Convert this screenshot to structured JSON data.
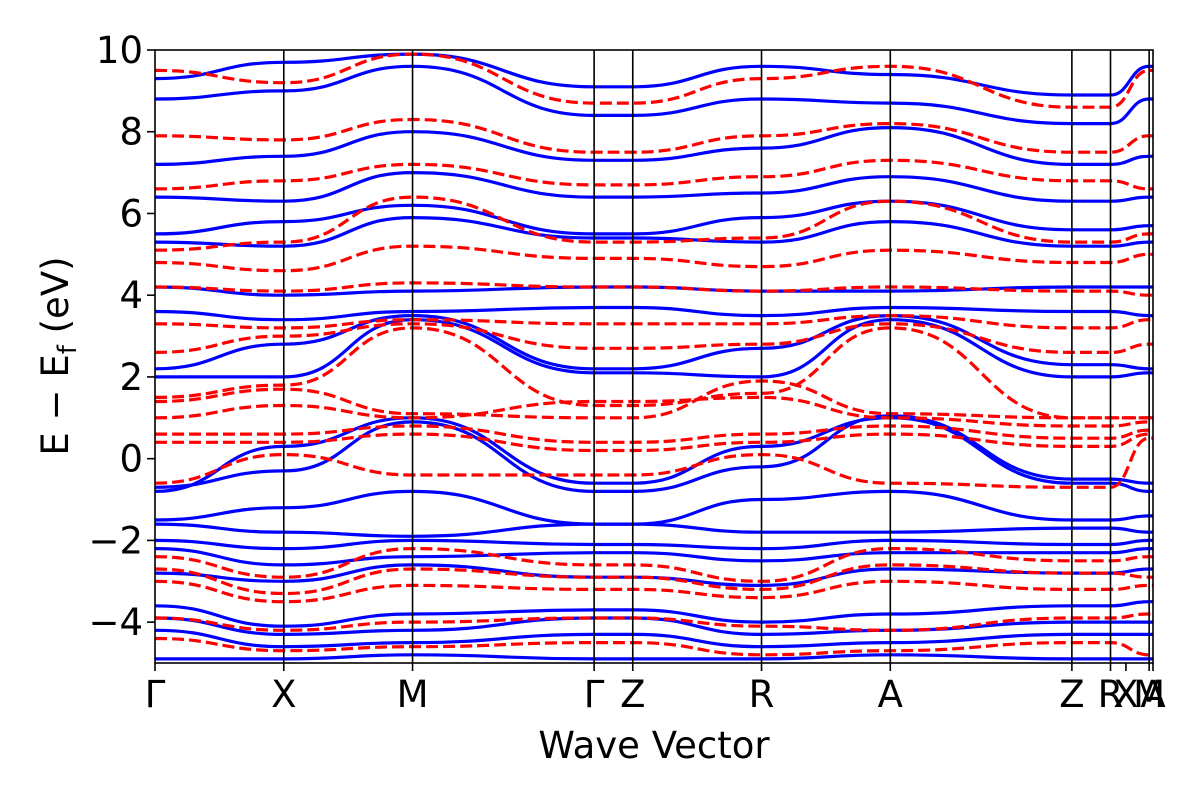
{
  "chart_data": {
    "type": "line",
    "title": "",
    "xlabel": "Wave Vector",
    "ylabel": "E − E",
    "ylabel_sub": "f",
    "ylabel_unit": " (eV)",
    "ylim": [
      -5,
      10
    ],
    "yticks": [
      -4,
      -2,
      0,
      2,
      4,
      6,
      8,
      10
    ],
    "ytick_labels": [
      "−4",
      "−2",
      "0",
      "2",
      "4",
      "6",
      "8",
      "10"
    ],
    "xlim": [
      0,
      7.75
    ],
    "kpoints": [
      {
        "label": "Γ",
        "x": 0.0
      },
      {
        "label": "X",
        "x": 1.0
      },
      {
        "label": "M",
        "x": 2.0
      },
      {
        "label": "Γ",
        "x": 3.41
      },
      {
        "label": "Z",
        "x": 3.71
      },
      {
        "label": "R",
        "x": 4.71
      },
      {
        "label": "A",
        "x": 5.71
      },
      {
        "label": "Z",
        "x": 7.12
      },
      {
        "label": "R",
        "x": 7.42
      },
      {
        "label": "X",
        "x": 7.54
      },
      {
        "label": "M",
        "x": 7.72
      },
      {
        "label": "A",
        "x": 7.75
      }
    ],
    "vlines": [
      1.0,
      2.0,
      3.41,
      3.71,
      4.71,
      5.71,
      7.12,
      7.42,
      7.72
    ],
    "grid": false,
    "legend": "none",
    "series_styles": [
      {
        "color": "#0000ff",
        "style": "solid"
      },
      {
        "color": "#ff0000",
        "style": "dashed"
      }
    ],
    "series": [
      {
        "style": 0,
        "x": [
          0,
          1,
          2,
          3.41,
          3.71,
          4.71,
          5.71,
          7.12,
          7.42,
          7.72,
          7.75
        ],
        "y": [
          -0.8,
          0.3,
          1.0,
          -0.6,
          -0.6,
          0.3,
          1.0,
          -0.6,
          -0.6,
          -0.8,
          -0.8
        ]
      },
      {
        "style": 0,
        "x": [
          0,
          1,
          2,
          3.41,
          3.71,
          4.71,
          5.71,
          7.12,
          7.42,
          7.72,
          7.75
        ],
        "y": [
          -0.7,
          -0.3,
          0.9,
          -0.8,
          -0.8,
          -0.2,
          1.05,
          -0.5,
          -0.5,
          -0.6,
          -0.6
        ]
      },
      {
        "style": 0,
        "x": [
          0,
          1,
          2,
          3.41,
          3.71,
          4.71,
          5.71,
          7.12,
          7.42,
          7.72,
          7.75
        ],
        "y": [
          -1.5,
          -1.2,
          -0.8,
          -1.6,
          -1.6,
          -1.0,
          -0.8,
          -1.5,
          -1.5,
          -1.4,
          -1.4
        ]
      },
      {
        "style": 0,
        "x": [
          0,
          1,
          2,
          3.41,
          3.71,
          4.71,
          5.71,
          7.12,
          7.42,
          7.72,
          7.75
        ],
        "y": [
          -1.6,
          -1.8,
          -1.9,
          -1.6,
          -1.6,
          -1.8,
          -1.8,
          -1.7,
          -1.7,
          -1.8,
          -1.8
        ]
      },
      {
        "style": 0,
        "x": [
          0,
          1,
          2,
          3.41,
          3.71,
          4.71,
          5.71,
          7.12,
          7.42,
          7.72,
          7.75
        ],
        "y": [
          -2.0,
          -2.2,
          -2.0,
          -2.1,
          -2.1,
          -2.2,
          -2.0,
          -2.1,
          -2.1,
          -2.0,
          -2.0
        ]
      },
      {
        "style": 0,
        "x": [
          0,
          1,
          2,
          3.41,
          3.71,
          4.71,
          5.71,
          7.12,
          7.42,
          7.72,
          7.75
        ],
        "y": [
          -2.2,
          -2.6,
          -2.4,
          -2.3,
          -2.3,
          -2.5,
          -2.3,
          -2.3,
          -2.3,
          -2.2,
          -2.2
        ]
      },
      {
        "style": 0,
        "x": [
          0,
          1,
          2,
          3.41,
          3.71,
          4.71,
          5.71,
          7.12,
          7.42,
          7.72,
          7.75
        ],
        "y": [
          -2.8,
          -3.0,
          -2.6,
          -2.9,
          -2.9,
          -3.1,
          -2.7,
          -2.8,
          -2.8,
          -2.7,
          -2.7
        ]
      },
      {
        "style": 0,
        "x": [
          0,
          1,
          2,
          3.41,
          3.71,
          4.71,
          5.71,
          7.12,
          7.42,
          7.72,
          7.75
        ],
        "y": [
          -3.6,
          -4.1,
          -3.8,
          -3.7,
          -3.7,
          -4.0,
          -3.8,
          -3.6,
          -3.6,
          -3.5,
          -3.5
        ]
      },
      {
        "style": 0,
        "x": [
          0,
          1,
          2,
          3.41,
          3.71,
          4.71,
          5.71,
          7.12,
          7.42,
          7.72,
          7.75
        ],
        "y": [
          -3.9,
          -4.3,
          -4.2,
          -3.9,
          -3.9,
          -4.3,
          -4.2,
          -4.0,
          -4.0,
          -4.0,
          -4.0
        ]
      },
      {
        "style": 0,
        "x": [
          0,
          1,
          2,
          3.41,
          3.71,
          4.71,
          5.71,
          7.12,
          7.42,
          7.72,
          7.75
        ],
        "y": [
          -4.2,
          -4.6,
          -4.5,
          -4.3,
          -4.3,
          -4.6,
          -4.5,
          -4.3,
          -4.3,
          -4.3,
          -4.3
        ]
      },
      {
        "style": 0,
        "x": [
          0,
          1,
          2,
          3.41,
          3.71,
          4.71,
          5.71,
          7.12,
          7.42,
          7.72,
          7.75
        ],
        "y": [
          -4.9,
          -4.9,
          -4.8,
          -4.9,
          -4.9,
          -4.9,
          -4.8,
          -4.9,
          -4.9,
          -4.9,
          -4.9
        ]
      },
      {
        "style": 0,
        "x": [
          0,
          1,
          2,
          3.41,
          3.71,
          4.71,
          5.71,
          7.12,
          7.42,
          7.72,
          7.75
        ],
        "y": [
          2.0,
          2.0,
          3.4,
          2.1,
          2.1,
          2.0,
          3.4,
          2.0,
          2.0,
          2.1,
          2.1
        ]
      },
      {
        "style": 0,
        "x": [
          0,
          1,
          2,
          3.41,
          3.71,
          4.71,
          5.71,
          7.12,
          7.42,
          7.72,
          7.75
        ],
        "y": [
          2.2,
          2.8,
          3.5,
          2.2,
          2.2,
          2.7,
          3.5,
          2.3,
          2.3,
          2.2,
          2.2
        ]
      },
      {
        "style": 0,
        "x": [
          0,
          1,
          2,
          3.41,
          3.71,
          4.71,
          5.71,
          7.12,
          7.42,
          7.72,
          7.75
        ],
        "y": [
          3.6,
          3.4,
          3.6,
          3.7,
          3.7,
          3.5,
          3.7,
          3.6,
          3.6,
          3.5,
          3.5
        ]
      },
      {
        "style": 0,
        "x": [
          0,
          1,
          2,
          3.41,
          3.71,
          4.71,
          5.71,
          7.12,
          7.42,
          7.72,
          7.75
        ],
        "y": [
          4.2,
          4.0,
          4.1,
          4.2,
          4.2,
          4.1,
          4.1,
          4.2,
          4.2,
          4.2,
          4.2
        ]
      },
      {
        "style": 0,
        "x": [
          0,
          1,
          2,
          3.41,
          3.71,
          4.71,
          5.71,
          7.12,
          7.42,
          7.72,
          7.75
        ],
        "y": [
          5.3,
          5.2,
          5.9,
          5.4,
          5.4,
          5.3,
          5.8,
          5.2,
          5.2,
          5.3,
          5.3
        ]
      },
      {
        "style": 0,
        "x": [
          0,
          1,
          2,
          3.41,
          3.71,
          4.71,
          5.71,
          7.12,
          7.42,
          7.72,
          7.75
        ],
        "y": [
          5.5,
          5.8,
          6.2,
          5.5,
          5.5,
          5.9,
          6.3,
          5.6,
          5.6,
          5.7,
          5.7
        ]
      },
      {
        "style": 0,
        "x": [
          0,
          1,
          2,
          3.41,
          3.71,
          4.71,
          5.71,
          7.12,
          7.42,
          7.72,
          7.75
        ],
        "y": [
          6.4,
          6.3,
          7.0,
          6.4,
          6.4,
          6.5,
          6.9,
          6.3,
          6.3,
          6.4,
          6.4
        ]
      },
      {
        "style": 0,
        "x": [
          0,
          1,
          2,
          3.41,
          3.71,
          4.71,
          5.71,
          7.12,
          7.42,
          7.72,
          7.75
        ],
        "y": [
          7.2,
          7.4,
          8.0,
          7.3,
          7.3,
          7.6,
          8.1,
          7.2,
          7.2,
          7.4,
          7.4
        ]
      },
      {
        "style": 0,
        "x": [
          0,
          1,
          2,
          3.41,
          3.71,
          4.71,
          5.71,
          7.12,
          7.42,
          7.72,
          7.75
        ],
        "y": [
          8.8,
          9.0,
          9.6,
          8.4,
          8.4,
          8.8,
          8.7,
          8.2,
          8.2,
          8.8,
          8.8
        ]
      },
      {
        "style": 0,
        "x": [
          0,
          1,
          2,
          3.41,
          3.71,
          4.71,
          5.71,
          7.12,
          7.42,
          7.72,
          7.75
        ],
        "y": [
          9.3,
          9.7,
          9.9,
          9.1,
          9.1,
          9.6,
          9.4,
          8.9,
          8.9,
          9.6,
          9.6
        ]
      },
      {
        "style": 1,
        "x": [
          0,
          1,
          2,
          3.41,
          3.71,
          4.71,
          5.71,
          7.12,
          7.42,
          7.72,
          7.75
        ],
        "y": [
          1.4,
          1.7,
          1.1,
          1.0,
          1.0,
          1.9,
          1.1,
          1.0,
          1.0,
          1.0,
          1.0
        ]
      },
      {
        "style": 1,
        "x": [
          0,
          1,
          2,
          3.41,
          3.71,
          4.71,
          5.71,
          7.12,
          7.42,
          7.72,
          7.75
        ],
        "y": [
          1.0,
          1.3,
          1.0,
          1.4,
          1.4,
          1.5,
          1.0,
          0.8,
          0.8,
          0.9,
          0.9
        ]
      },
      {
        "style": 1,
        "x": [
          0,
          1,
          2,
          3.41,
          3.71,
          4.71,
          5.71,
          7.12,
          7.42,
          7.72,
          7.75
        ],
        "y": [
          0.6,
          0.6,
          0.8,
          0.4,
          0.4,
          0.6,
          0.8,
          0.5,
          0.5,
          0.7,
          0.7
        ]
      },
      {
        "style": 1,
        "x": [
          0,
          1,
          2,
          3.41,
          3.71,
          4.71,
          5.71,
          7.12,
          7.42,
          7.72,
          7.75
        ],
        "y": [
          0.4,
          0.4,
          0.6,
          0.2,
          0.2,
          0.4,
          0.6,
          0.3,
          0.3,
          0.6,
          0.6
        ]
      },
      {
        "style": 1,
        "x": [
          0,
          1,
          2,
          3.41,
          3.71,
          4.71,
          5.71,
          7.12,
          7.42,
          7.72,
          7.75
        ],
        "y": [
          -0.6,
          0.1,
          -0.4,
          -0.4,
          -0.4,
          0.1,
          -0.6,
          -0.7,
          -0.7,
          0.5,
          0.5
        ]
      },
      {
        "style": 1,
        "x": [
          0,
          1,
          2,
          3.41,
          3.71,
          4.71,
          5.71,
          7.12,
          7.42,
          7.72,
          7.75
        ],
        "y": [
          1.5,
          1.8,
          3.2,
          1.3,
          1.3,
          1.6,
          3.2,
          1.0,
          1.0,
          1.0,
          1.0
        ]
      },
      {
        "style": 1,
        "x": [
          0,
          1,
          2,
          3.41,
          3.71,
          4.71,
          5.71,
          7.12,
          7.42,
          7.72,
          7.75
        ],
        "y": [
          2.6,
          3.0,
          3.3,
          2.7,
          2.7,
          2.8,
          3.3,
          2.6,
          2.6,
          2.8,
          2.8
        ]
      },
      {
        "style": 1,
        "x": [
          0,
          1,
          2,
          3.41,
          3.71,
          4.71,
          5.71,
          7.12,
          7.42,
          7.72,
          7.75
        ],
        "y": [
          3.3,
          3.2,
          3.4,
          3.3,
          3.3,
          3.3,
          3.5,
          3.2,
          3.2,
          3.4,
          3.4
        ]
      },
      {
        "style": 1,
        "x": [
          0,
          1,
          2,
          3.41,
          3.71,
          4.71,
          5.71,
          7.12,
          7.42,
          7.72,
          7.75
        ],
        "y": [
          4.2,
          4.1,
          4.3,
          4.2,
          4.2,
          4.1,
          4.2,
          4.1,
          4.1,
          4.0,
          4.0
        ]
      },
      {
        "style": 1,
        "x": [
          0,
          1,
          2,
          3.41,
          3.71,
          4.71,
          5.71,
          7.12,
          7.42,
          7.72,
          7.75
        ],
        "y": [
          4.8,
          4.6,
          5.2,
          4.9,
          4.9,
          4.7,
          5.1,
          4.8,
          4.8,
          5.0,
          5.0
        ]
      },
      {
        "style": 1,
        "x": [
          0,
          1,
          2,
          3.41,
          3.71,
          4.71,
          5.71,
          7.12,
          7.42,
          7.72,
          7.75
        ],
        "y": [
          5.1,
          5.3,
          6.4,
          5.3,
          5.3,
          5.4,
          6.3,
          5.3,
          5.3,
          5.5,
          5.5
        ]
      },
      {
        "style": 1,
        "x": [
          0,
          1,
          2,
          3.41,
          3.71,
          4.71,
          5.71,
          7.12,
          7.42,
          7.72,
          7.75
        ],
        "y": [
          6.6,
          6.8,
          7.2,
          6.7,
          6.7,
          6.9,
          7.3,
          6.8,
          6.8,
          6.6,
          6.6
        ]
      },
      {
        "style": 1,
        "x": [
          0,
          1,
          2,
          3.41,
          3.71,
          4.71,
          5.71,
          7.12,
          7.42,
          7.72,
          7.75
        ],
        "y": [
          7.9,
          7.8,
          8.3,
          7.5,
          7.5,
          7.9,
          8.2,
          7.5,
          7.5,
          7.9,
          7.9
        ]
      },
      {
        "style": 1,
        "x": [
          0,
          1,
          2,
          3.41,
          3.71,
          4.71,
          5.71,
          7.12,
          7.42,
          7.72,
          7.75
        ],
        "y": [
          9.5,
          9.2,
          9.9,
          8.7,
          8.7,
          9.3,
          9.6,
          8.6,
          8.6,
          9.5,
          9.5
        ]
      },
      {
        "style": 1,
        "x": [
          0,
          1,
          2,
          3.41,
          3.71,
          4.71,
          5.71,
          7.12,
          7.42,
          7.72,
          7.75
        ],
        "y": [
          -2.4,
          -2.9,
          -2.2,
          -2.6,
          -2.6,
          -3.0,
          -2.2,
          -2.5,
          -2.5,
          -2.4,
          -2.4
        ]
      },
      {
        "style": 1,
        "x": [
          0,
          1,
          2,
          3.41,
          3.71,
          4.71,
          5.71,
          7.12,
          7.42,
          7.72,
          7.75
        ],
        "y": [
          -2.7,
          -3.3,
          -2.7,
          -2.9,
          -2.9,
          -3.2,
          -2.6,
          -2.8,
          -2.8,
          -2.9,
          -2.9
        ]
      },
      {
        "style": 1,
        "x": [
          0,
          1,
          2,
          3.41,
          3.71,
          4.71,
          5.71,
          7.12,
          7.42,
          7.72,
          7.75
        ],
        "y": [
          -3.0,
          -3.5,
          -3.1,
          -3.2,
          -3.2,
          -3.4,
          -3.0,
          -3.2,
          -3.2,
          -3.1,
          -3.1
        ]
      },
      {
        "style": 1,
        "x": [
          0,
          1,
          2,
          3.41,
          3.71,
          4.71,
          5.71,
          7.12,
          7.42,
          7.72,
          7.75
        ],
        "y": [
          -3.9,
          -4.2,
          -4.0,
          -3.9,
          -3.9,
          -4.1,
          -4.2,
          -3.9,
          -3.9,
          -3.8,
          -3.8
        ]
      },
      {
        "style": 1,
        "x": [
          0,
          1,
          2,
          3.41,
          3.71,
          4.71,
          5.71,
          7.12,
          7.42,
          7.72,
          7.75
        ],
        "y": [
          -4.4,
          -4.7,
          -4.6,
          -4.5,
          -4.5,
          -4.8,
          -4.7,
          -4.5,
          -4.5,
          -4.8,
          -4.8
        ]
      }
    ]
  }
}
